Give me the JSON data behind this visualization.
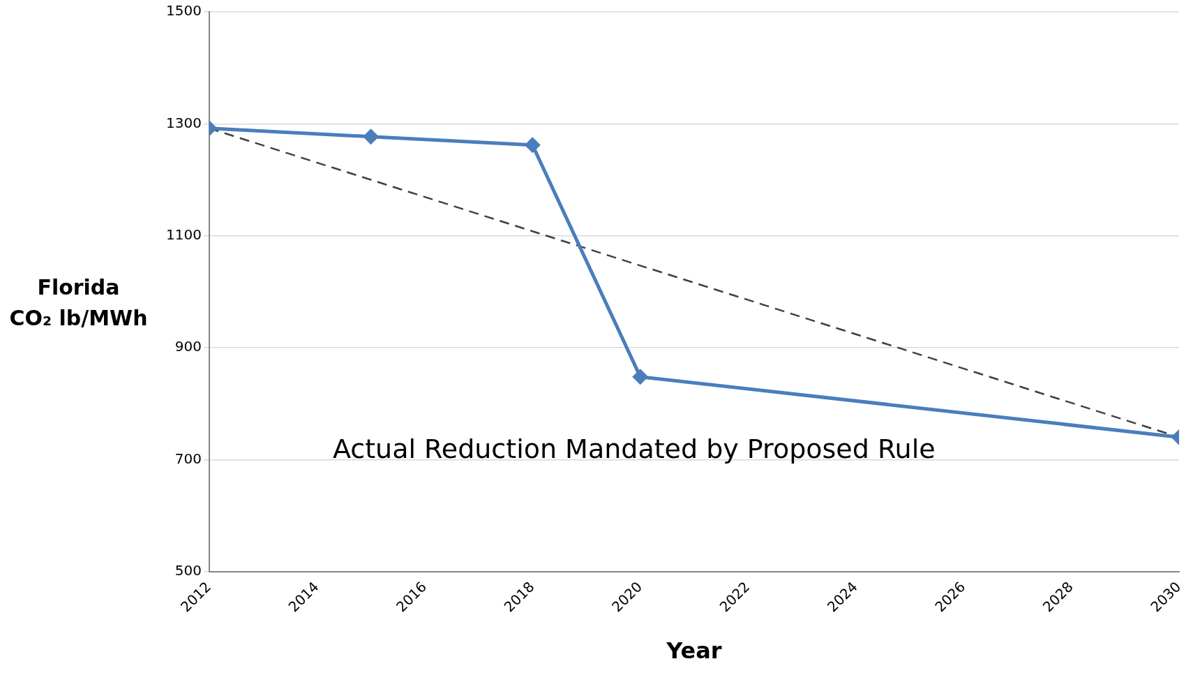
{
  "chart_data": {
    "type": "line",
    "xlabel": "Year",
    "ylabel": "Florida\nCO₂ lb/MWh",
    "x": [
      2012,
      2015,
      2018,
      2020,
      2030
    ],
    "series": [
      {
        "color": "#4a7ebb",
        "values": [
          1292,
          1277,
          1262,
          848,
          740
        ],
        "marker": "diamond",
        "line_style": "solid"
      },
      {
        "type": "line",
        "color": "#404040",
        "x": [
          2012,
          2030
        ],
        "values": [
          1292,
          740
        ],
        "marker": "none",
        "line_style": "dashed"
      }
    ],
    "annotations": [
      "Actual Reduction Mandated by Proposed Rule"
    ],
    "xlim": [
      2012,
      2030
    ],
    "xticks": [
      2012,
      2014,
      2016,
      2018,
      2020,
      2022,
      2024,
      2026,
      2028,
      2030
    ],
    "ylim": [
      500,
      1500
    ],
    "yticks": [
      500,
      700,
      900,
      1100,
      1300,
      1500
    ],
    "grid": "y",
    "legend": false
  }
}
